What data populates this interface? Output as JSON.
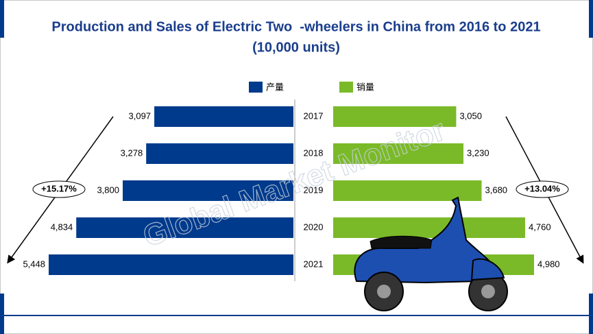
{
  "chart_data": {
    "type": "butterfly-bar",
    "title": "Production and Sales of Electric Two  -wheelers in China from 2016 to 2021",
    "subtitle": "(10,000 units)",
    "categories": [
      "2017",
      "2018",
      "2019",
      "2020",
      "2021"
    ],
    "series": [
      {
        "name": "产量",
        "color": "#003a8c",
        "values": [
          3097,
          3278,
          3800,
          4834,
          5448
        ],
        "value_labels": [
          "3,097",
          "3,278",
          "3,800",
          "4,834",
          "5,448"
        ]
      },
      {
        "name": "销量",
        "color": "#7aba28",
        "values": [
          3050,
          3230,
          3680,
          4760,
          4980
        ],
        "value_labels": [
          "3,050",
          "3,230",
          "3,680",
          "4,760",
          "4,980"
        ]
      }
    ],
    "annotations": [
      "+15.17%",
      "+13.04%"
    ],
    "watermark": "Global Market Monitor"
  }
}
